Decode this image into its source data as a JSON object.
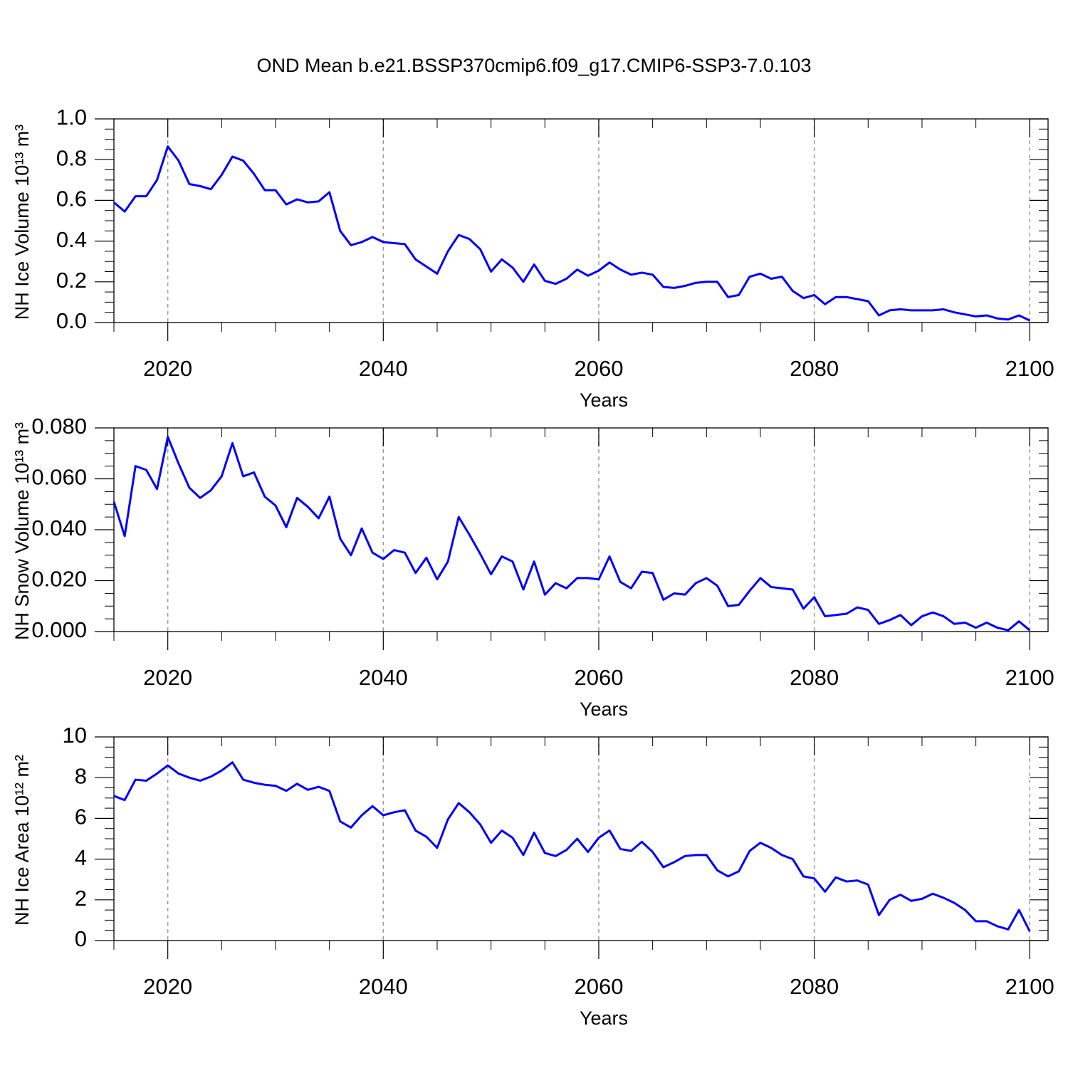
{
  "chart_data": [
    {
      "type": "line",
      "title": "OND Mean b.e21.BSSP370cmip6.f09_g17.CMIP6-SSP3-7.0.103",
      "ylabel": "NH Ice Volume 10¹³ m³",
      "xlabel": "Years",
      "color": "#0000ff",
      "xgrid": true,
      "xlim": [
        2015,
        2101.7
      ],
      "xticks": [
        2020,
        2040,
        2060,
        2080,
        2100
      ],
      "ylim": [
        0,
        1
      ],
      "yticks": [
        {
          "value": 0,
          "label": "0.0"
        },
        {
          "value": 0.2,
          "label": "0.2"
        },
        {
          "value": 0.4,
          "label": "0.4"
        },
        {
          "value": 0.6,
          "label": "0.6"
        },
        {
          "value": 0.8,
          "label": "0.8"
        },
        {
          "value": 1,
          "label": "1.0"
        }
      ],
      "x": [
        2015,
        2016,
        2017,
        2018,
        2019,
        2020,
        2021,
        2022,
        2023,
        2024,
        2025,
        2026,
        2027,
        2028,
        2029,
        2030,
        2031,
        2032,
        2033,
        2034,
        2035,
        2036,
        2037,
        2038,
        2039,
        2040,
        2041,
        2042,
        2043,
        2044,
        2045,
        2046,
        2047,
        2048,
        2049,
        2050,
        2051,
        2052,
        2053,
        2054,
        2055,
        2056,
        2057,
        2058,
        2059,
        2060,
        2061,
        2062,
        2063,
        2064,
        2065,
        2066,
        2067,
        2068,
        2069,
        2070,
        2071,
        2072,
        2073,
        2074,
        2075,
        2076,
        2077,
        2078,
        2079,
        2080,
        2081,
        2082,
        2083,
        2084,
        2085,
        2086,
        2087,
        2088,
        2089,
        2090,
        2091,
        2092,
        2093,
        2094,
        2095,
        2096,
        2097,
        2098,
        2099,
        2100
      ],
      "values": [
        0.59,
        0.545,
        0.62,
        0.62,
        0.7,
        0.865,
        0.795,
        0.68,
        0.67,
        0.655,
        0.725,
        0.815,
        0.795,
        0.73,
        0.65,
        0.65,
        0.58,
        0.605,
        0.59,
        0.595,
        0.64,
        0.45,
        0.38,
        0.395,
        0.42,
        0.395,
        0.39,
        0.385,
        0.31,
        0.275,
        0.24,
        0.35,
        0.43,
        0.41,
        0.36,
        0.25,
        0.31,
        0.27,
        0.2,
        0.285,
        0.205,
        0.19,
        0.215,
        0.26,
        0.23,
        0.255,
        0.295,
        0.26,
        0.235,
        0.245,
        0.235,
        0.175,
        0.17,
        0.18,
        0.195,
        0.2,
        0.2,
        0.125,
        0.135,
        0.225,
        0.24,
        0.215,
        0.225,
        0.155,
        0.12,
        0.135,
        0.09,
        0.125,
        0.125,
        0.115,
        0.105,
        0.035,
        0.06,
        0.065,
        0.06,
        0.06,
        0.06,
        0.065,
        0.05,
        0.04,
        0.03,
        0.035,
        0.02,
        0.015,
        0.035,
        0.01
      ]
    },
    {
      "type": "line",
      "ylabel": "NH Snow Volume 10¹³ m³",
      "xlabel": "Years",
      "color": "#0000ff",
      "xgrid": true,
      "xlim": [
        2015,
        2101.7
      ],
      "xticks": [
        2020,
        2040,
        2060,
        2080,
        2100
      ],
      "ylim": [
        0,
        0.08
      ],
      "yticks": [
        {
          "value": 0,
          "label": "0.000"
        },
        {
          "value": 0.02,
          "label": "0.020"
        },
        {
          "value": 0.04,
          "label": "0.040"
        },
        {
          "value": 0.06,
          "label": "0.060"
        },
        {
          "value": 0.08,
          "label": "0.080"
        }
      ],
      "x": [
        2015,
        2016,
        2017,
        2018,
        2019,
        2020,
        2021,
        2022,
        2023,
        2024,
        2025,
        2026,
        2027,
        2028,
        2029,
        2030,
        2031,
        2032,
        2033,
        2034,
        2035,
        2036,
        2037,
        2038,
        2039,
        2040,
        2041,
        2042,
        2043,
        2044,
        2045,
        2046,
        2047,
        2048,
        2049,
        2050,
        2051,
        2052,
        2053,
        2054,
        2055,
        2056,
        2057,
        2058,
        2059,
        2060,
        2061,
        2062,
        2063,
        2064,
        2065,
        2066,
        2067,
        2068,
        2069,
        2070,
        2071,
        2072,
        2073,
        2074,
        2075,
        2076,
        2077,
        2078,
        2079,
        2080,
        2081,
        2082,
        2083,
        2084,
        2085,
        2086,
        2087,
        2088,
        2089,
        2090,
        2091,
        2092,
        2093,
        2094,
        2095,
        2096,
        2097,
        2098,
        2099,
        2100
      ],
      "values": [
        0.051,
        0.0375,
        0.065,
        0.0635,
        0.056,
        0.0765,
        0.066,
        0.0565,
        0.0525,
        0.0555,
        0.061,
        0.074,
        0.061,
        0.0625,
        0.053,
        0.0495,
        0.041,
        0.0525,
        0.049,
        0.0445,
        0.053,
        0.0365,
        0.03,
        0.0405,
        0.031,
        0.0285,
        0.032,
        0.031,
        0.023,
        0.029,
        0.0205,
        0.0275,
        0.045,
        0.038,
        0.0305,
        0.0225,
        0.0295,
        0.0275,
        0.0165,
        0.0275,
        0.0145,
        0.019,
        0.017,
        0.021,
        0.021,
        0.0205,
        0.0295,
        0.0195,
        0.017,
        0.0235,
        0.023,
        0.0125,
        0.015,
        0.0145,
        0.019,
        0.021,
        0.018,
        0.01,
        0.0105,
        0.016,
        0.021,
        0.0175,
        0.017,
        0.0165,
        0.009,
        0.0135,
        0.006,
        0.0065,
        0.007,
        0.0095,
        0.0085,
        0.003,
        0.0045,
        0.0065,
        0.0025,
        0.006,
        0.0075,
        0.006,
        0.003,
        0.0035,
        0.0015,
        0.0035,
        0.0015,
        0.0005,
        0.004,
        0.0005
      ]
    },
    {
      "type": "line",
      "ylabel": "NH Ice Area 10¹² m²",
      "xlabel": "Years",
      "color": "#0000ff",
      "xgrid": true,
      "xlim": [
        2015,
        2101.7
      ],
      "xticks": [
        2020,
        2040,
        2060,
        2080,
        2100
      ],
      "ylim": [
        0,
        10
      ],
      "yticks": [
        0,
        2,
        4,
        6,
        8,
        10
      ],
      "x": [
        2015,
        2016,
        2017,
        2018,
        2019,
        2020,
        2021,
        2022,
        2023,
        2024,
        2025,
        2026,
        2027,
        2028,
        2029,
        2030,
        2031,
        2032,
        2033,
        2034,
        2035,
        2036,
        2037,
        2038,
        2039,
        2040,
        2041,
        2042,
        2043,
        2044,
        2045,
        2046,
        2047,
        2048,
        2049,
        2050,
        2051,
        2052,
        2053,
        2054,
        2055,
        2056,
        2057,
        2058,
        2059,
        2060,
        2061,
        2062,
        2063,
        2064,
        2065,
        2066,
        2067,
        2068,
        2069,
        2070,
        2071,
        2072,
        2073,
        2074,
        2075,
        2076,
        2077,
        2078,
        2079,
        2080,
        2081,
        2082,
        2083,
        2084,
        2085,
        2086,
        2087,
        2088,
        2089,
        2090,
        2091,
        2092,
        2093,
        2094,
        2095,
        2096,
        2097,
        2098,
        2099,
        2100
      ],
      "values": [
        7.1,
        6.9,
        7.9,
        7.85,
        8.2,
        8.6,
        8.2,
        8.0,
        7.85,
        8.05,
        8.35,
        8.75,
        7.9,
        7.75,
        7.65,
        7.6,
        7.35,
        7.7,
        7.4,
        7.55,
        7.35,
        5.85,
        5.55,
        6.15,
        6.6,
        6.15,
        6.3,
        6.4,
        5.4,
        5.1,
        4.55,
        5.95,
        6.75,
        6.3,
        5.7,
        4.8,
        5.4,
        5.05,
        4.2,
        5.3,
        4.3,
        4.15,
        4.45,
        5.0,
        4.35,
        5.05,
        5.4,
        4.5,
        4.4,
        4.85,
        4.35,
        3.6,
        3.85,
        4.15,
        4.2,
        4.2,
        3.45,
        3.15,
        3.4,
        4.4,
        4.8,
        4.55,
        4.2,
        4.0,
        3.15,
        3.05,
        2.4,
        3.1,
        2.9,
        2.95,
        2.75,
        1.25,
        2.0,
        2.25,
        1.95,
        2.05,
        2.3,
        2.1,
        1.85,
        1.5,
        0.95,
        0.95,
        0.7,
        0.55,
        1.5,
        0.45
      ]
    }
  ]
}
